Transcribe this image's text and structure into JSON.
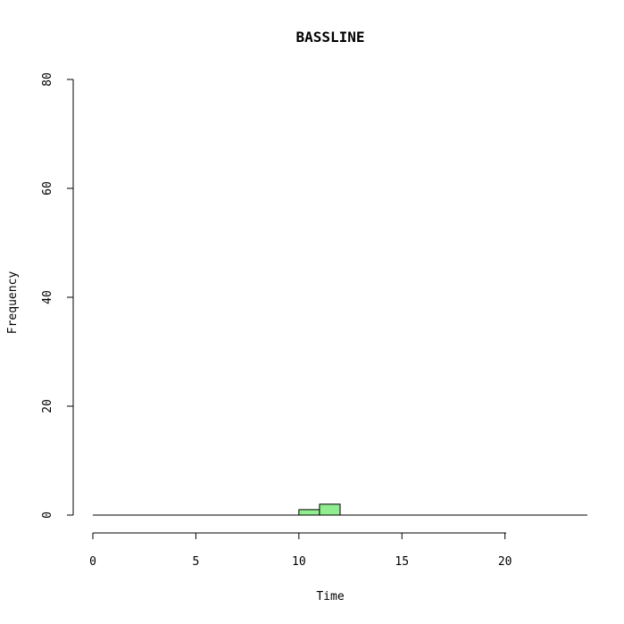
{
  "chart_data": {
    "type": "bar",
    "title": "BASSLINE",
    "xlabel": "Time",
    "ylabel": "Frequency",
    "xlim": [
      0,
      24
    ],
    "ylim": [
      0,
      80
    ],
    "x_ticks": [
      "0",
      "5",
      "10",
      "15",
      "20"
    ],
    "y_ticks": [
      "0",
      "20",
      "40",
      "60",
      "80"
    ],
    "bins": [
      {
        "x0": 10,
        "x1": 11,
        "count": 1
      },
      {
        "x0": 11,
        "x1": 12,
        "count": 2
      }
    ],
    "bar_color": "#90ee90",
    "grid": false
  }
}
